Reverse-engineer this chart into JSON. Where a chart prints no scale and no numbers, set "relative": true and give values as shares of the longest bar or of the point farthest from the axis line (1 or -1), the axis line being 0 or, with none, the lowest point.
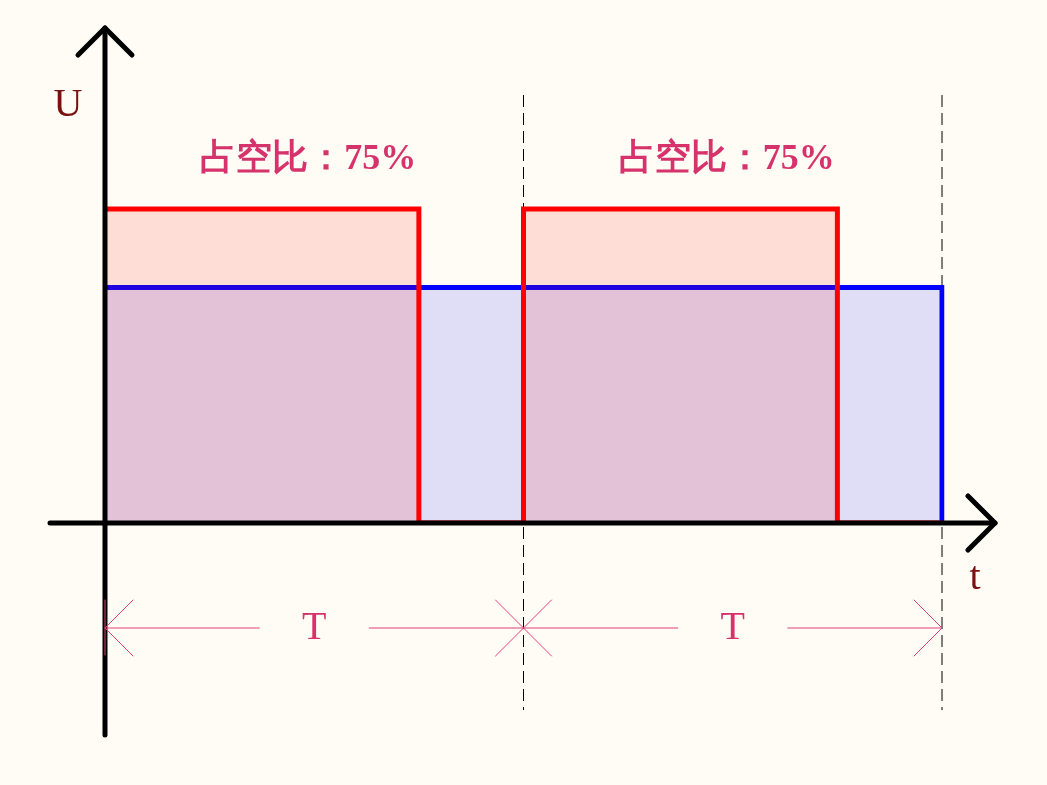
{
  "chart_data": {
    "type": "step",
    "relative": true,
    "xlabel": "t",
    "ylabel": "U",
    "categories": [
      null,
      null,
      null,
      null,
      null,
      null,
      null,
      null,
      null
    ],
    "series": [
      {
        "color": "#ff0000",
        "values": [
          1,
          1,
          1,
          0,
          1,
          1,
          1,
          0,
          0
        ]
      },
      {
        "color": "#0000ff",
        "values": [
          0.75,
          0.75,
          0.75,
          0.75,
          0.75,
          0.75,
          0.75,
          0.75,
          0
        ]
      }
    ],
    "annotations": [
      "占空比：75%",
      "占空比：75%",
      "T",
      "T"
    ],
    "legend": false
  }
}
